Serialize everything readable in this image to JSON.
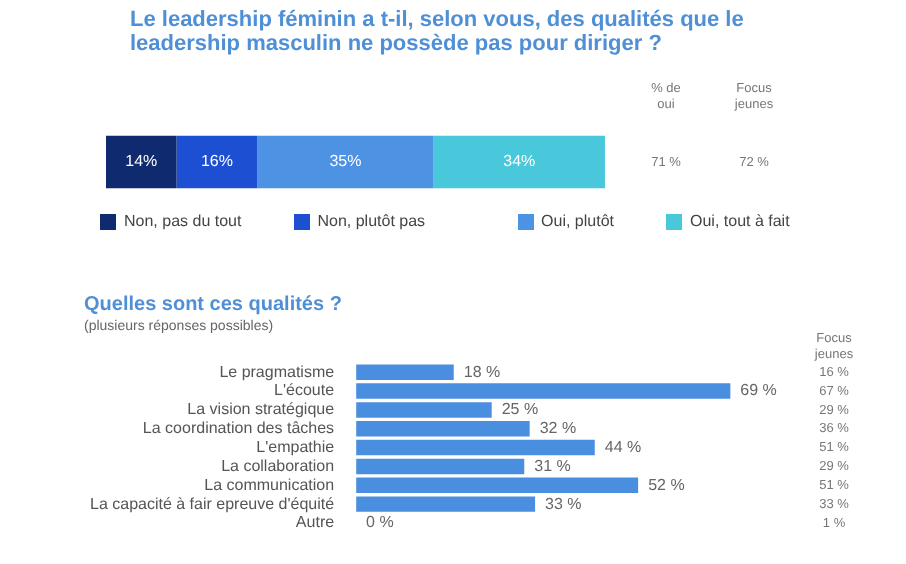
{
  "chart_data": [
    {
      "type": "bar",
      "orientation": "horizontal",
      "stacked": true,
      "title": "Le leadership féminin a t-il, selon vous, des qualités que le leadership masculin ne possède pas pour diriger ?",
      "categories": [
        null
      ],
      "series": [
        {
          "name": "Non, pas du tout",
          "color": "#0f2a6e",
          "values": [
            14
          ],
          "value_labels": [
            "14%"
          ]
        },
        {
          "name": "Non, plutôt pas",
          "color": "#1c4fd2",
          "values": [
            16
          ],
          "value_labels": [
            "16%"
          ]
        },
        {
          "name": "Oui, plutôt",
          "color": "#4d92e3",
          "values": [
            35
          ],
          "value_labels": [
            "35%"
          ]
        },
        {
          "name": "Oui, tout à fait",
          "color": "#48c8da",
          "values": [
            34
          ],
          "value_labels": [
            "34%"
          ]
        }
      ],
      "legend": "bottom",
      "grid": false,
      "tick_labels": false,
      "annotations": [
        "% de oui",
        "Focus jeunes",
        "71 %",
        "72 %"
      ]
    },
    {
      "type": "bar",
      "orientation": "horizontal",
      "title": "Quelles sont ces qualités ?",
      "subtitle": "(plusieurs réponses possibles)",
      "categories": [
        "Le pragmatisme",
        "L'écoute",
        "La vision stratégique",
        "La coordination des tâches",
        "L'empathie",
        "La collaboration",
        "La communication",
        "La capacité à fair epreuve d'équité",
        "Autre"
      ],
      "values": [
        18,
        69,
        25,
        32,
        44,
        31,
        52,
        33,
        0
      ],
      "value_labels": [
        "18 %",
        "69 %",
        "25 %",
        "32 %",
        "44 %",
        "31 %",
        "52 %",
        "33 %",
        "0 %"
      ],
      "color": "#4a8ee0",
      "grid": false,
      "legend": false,
      "tick_labels": "y",
      "annotations": [
        "Focus jeunes",
        "16 %",
        "67 %",
        "29 %",
        "36 %",
        "51 %",
        "29 %",
        "51 %",
        "33 %",
        "1 %"
      ]
    }
  ]
}
